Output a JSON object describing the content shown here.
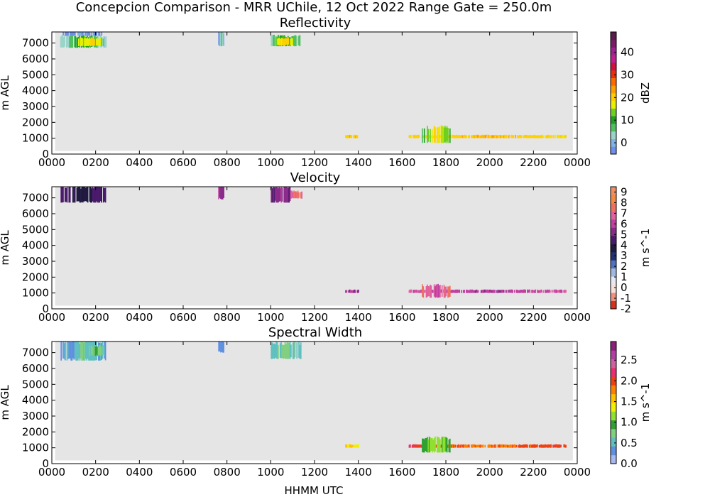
{
  "figure_title": "Concepcion Comparison - MRR UChile, 12 Oct 2022 Range Gate = 250.0m",
  "xlabel": "HHMM UTC",
  "x_tick_labels": [
    "0000",
    "0200",
    "0400",
    "0600",
    "0800",
    "1000",
    "1200",
    "1400",
    "1600",
    "1800",
    "2000",
    "2200",
    "0000"
  ],
  "colors": {
    "panel_background": "#e5e5e5",
    "frame": "#000000"
  },
  "chart_data": [
    {
      "type": "heatmap",
      "title": "Reflectivity",
      "ylabel": "m AGL",
      "xlim": [
        0,
        24
      ],
      "ylim": [
        0,
        7700
      ],
      "y_ticks": [
        0,
        1000,
        2000,
        3000,
        4000,
        5000,
        6000,
        7000
      ],
      "colorbar": {
        "label": "dBZ",
        "range": [
          -5,
          49
        ],
        "ticks": [
          0,
          10,
          20,
          30,
          40
        ],
        "tick_labels": [
          "0",
          "10",
          "20",
          "30",
          "40"
        ],
        "colormap": [
          "#6f8fe8",
          "#7fb3e8",
          "#9ad4c8",
          "#4fbf5f",
          "#1f9f1f",
          "#6fd01f",
          "#e8f000",
          "#ffd000",
          "#ffa000",
          "#ff6a00",
          "#e8300f",
          "#d0103f",
          "#c0208f",
          "#a0208f",
          "#7a1a6a",
          "#5a1a4a"
        ]
      },
      "regions": [
        {
          "t0": 0.38,
          "t1": 2.45,
          "z0": 6700,
          "z1": 7450,
          "core": 12,
          "edge": 2
        },
        {
          "t0": 1.2,
          "t1": 2.35,
          "z0": 6800,
          "z1": 7300,
          "core": 20,
          "edge": 14
        },
        {
          "t0": 0.45,
          "t1": 2.3,
          "z0": 7450,
          "z1": 7700,
          "core": -2,
          "edge": -4
        },
        {
          "t0": 7.6,
          "t1": 7.85,
          "z0": 6800,
          "z1": 7700,
          "core": 6,
          "edge": -2
        },
        {
          "t0": 10.0,
          "t1": 11.35,
          "z0": 6800,
          "z1": 7450,
          "core": 12,
          "edge": 4
        },
        {
          "t0": 10.2,
          "t1": 11.0,
          "z0": 6850,
          "z1": 7300,
          "core": 21,
          "edge": 15
        },
        {
          "t0": 13.4,
          "t1": 14.0,
          "z0": 1000,
          "z1": 1200,
          "core": 22,
          "edge": 20
        },
        {
          "t0": 16.3,
          "t1": 23.5,
          "z0": 1000,
          "z1": 1200,
          "core": 22,
          "edge": 19
        },
        {
          "t0": 16.9,
          "t1": 18.2,
          "z0": 700,
          "z1": 1700,
          "core": 21,
          "edge": 8
        }
      ]
    },
    {
      "type": "heatmap",
      "title": "Velocity",
      "ylabel": "m AGL",
      "xlim": [
        0,
        24
      ],
      "ylim": [
        0,
        7700
      ],
      "y_ticks": [
        0,
        1000,
        2000,
        3000,
        4000,
        5000,
        6000,
        7000
      ],
      "colorbar": {
        "label": "m s^-1",
        "range": [
          -2,
          9.5
        ],
        "ticks": [
          -2,
          -1,
          0,
          1,
          2,
          3,
          4,
          5,
          6,
          7,
          8,
          9
        ],
        "tick_labels": [
          "-2",
          "-1",
          "0",
          "1",
          "2",
          "3",
          "4",
          "5",
          "6",
          "7",
          "8",
          "9"
        ],
        "colormap": [
          "#d8301f",
          "#f0907f",
          "#f8e0d8",
          "#e8e8f0",
          "#a0b8e0",
          "#5070c0",
          "#203070",
          "#201a40",
          "#4a1a6a",
          "#8a2a8a",
          "#c040a0",
          "#e060a0",
          "#f07060",
          "#f58a40",
          "#f09060"
        ]
      },
      "regions": [
        {
          "t0": 0.4,
          "t1": 2.45,
          "z0": 6700,
          "z1": 7700,
          "core": 3.6,
          "edge": 4.6
        },
        {
          "t0": 7.6,
          "t1": 7.85,
          "z0": 6900,
          "z1": 7700,
          "core": 5.2,
          "edge": 5.8
        },
        {
          "t0": 10.0,
          "t1": 10.9,
          "z0": 6700,
          "z1": 7700,
          "core": 5.5,
          "edge": 5.0
        },
        {
          "t0": 10.9,
          "t1": 11.4,
          "z0": 6950,
          "z1": 7400,
          "core": 7.5,
          "edge": 7.0
        },
        {
          "t0": 13.4,
          "t1": 14.0,
          "z0": 1000,
          "z1": 1200,
          "core": 5.8,
          "edge": 5.5
        },
        {
          "t0": 16.3,
          "t1": 23.5,
          "z0": 1000,
          "z1": 1200,
          "core": 5.8,
          "edge": 6.5
        },
        {
          "t0": 16.9,
          "t1": 18.2,
          "z0": 700,
          "z1": 1500,
          "core": 6.2,
          "edge": 7.8
        }
      ]
    },
    {
      "type": "heatmap",
      "title": "Spectral Width",
      "ylabel": "m AGL",
      "xlim": [
        0,
        24
      ],
      "ylim": [
        0,
        7700
      ],
      "y_ticks": [
        0,
        1000,
        2000,
        3000,
        4000,
        5000,
        6000,
        7000
      ],
      "colorbar": {
        "label": "m s^-1",
        "range": [
          0,
          2.95
        ],
        "ticks": [
          0,
          0.5,
          1.0,
          1.5,
          2.0,
          2.5
        ],
        "tick_labels": [
          "0.0",
          "0.5",
          "1.0",
          "1.5",
          "2.0",
          "2.5"
        ],
        "colormap": [
          "#a8b8f0",
          "#6090e0",
          "#60c0c0",
          "#80d080",
          "#30a030",
          "#90e030",
          "#f0f000",
          "#ffc000",
          "#ff8000",
          "#f04010",
          "#e83070",
          "#d060a0",
          "#b040a0",
          "#8a207a"
        ]
      },
      "regions": [
        {
          "t0": 0.4,
          "t1": 2.45,
          "z0": 6500,
          "z1": 7700,
          "core": 0.6,
          "edge": 0.35
        },
        {
          "t0": 1.6,
          "t1": 2.4,
          "z0": 6800,
          "z1": 7400,
          "core": 0.85,
          "edge": 0.6
        },
        {
          "t0": 7.6,
          "t1": 7.85,
          "z0": 7000,
          "z1": 7700,
          "core": 0.4,
          "edge": 0.3
        },
        {
          "t0": 10.0,
          "t1": 11.35,
          "z0": 6600,
          "z1": 7600,
          "core": 0.75,
          "edge": 0.45
        },
        {
          "t0": 13.4,
          "t1": 14.0,
          "z0": 1000,
          "z1": 1200,
          "core": 1.5,
          "edge": 1.4
        },
        {
          "t0": 16.3,
          "t1": 23.5,
          "z0": 1000,
          "z1": 1200,
          "core": 1.8,
          "edge": 2.1
        },
        {
          "t0": 16.9,
          "t1": 18.2,
          "z0": 700,
          "z1": 1600,
          "core": 1.2,
          "edge": 0.9
        }
      ]
    }
  ]
}
